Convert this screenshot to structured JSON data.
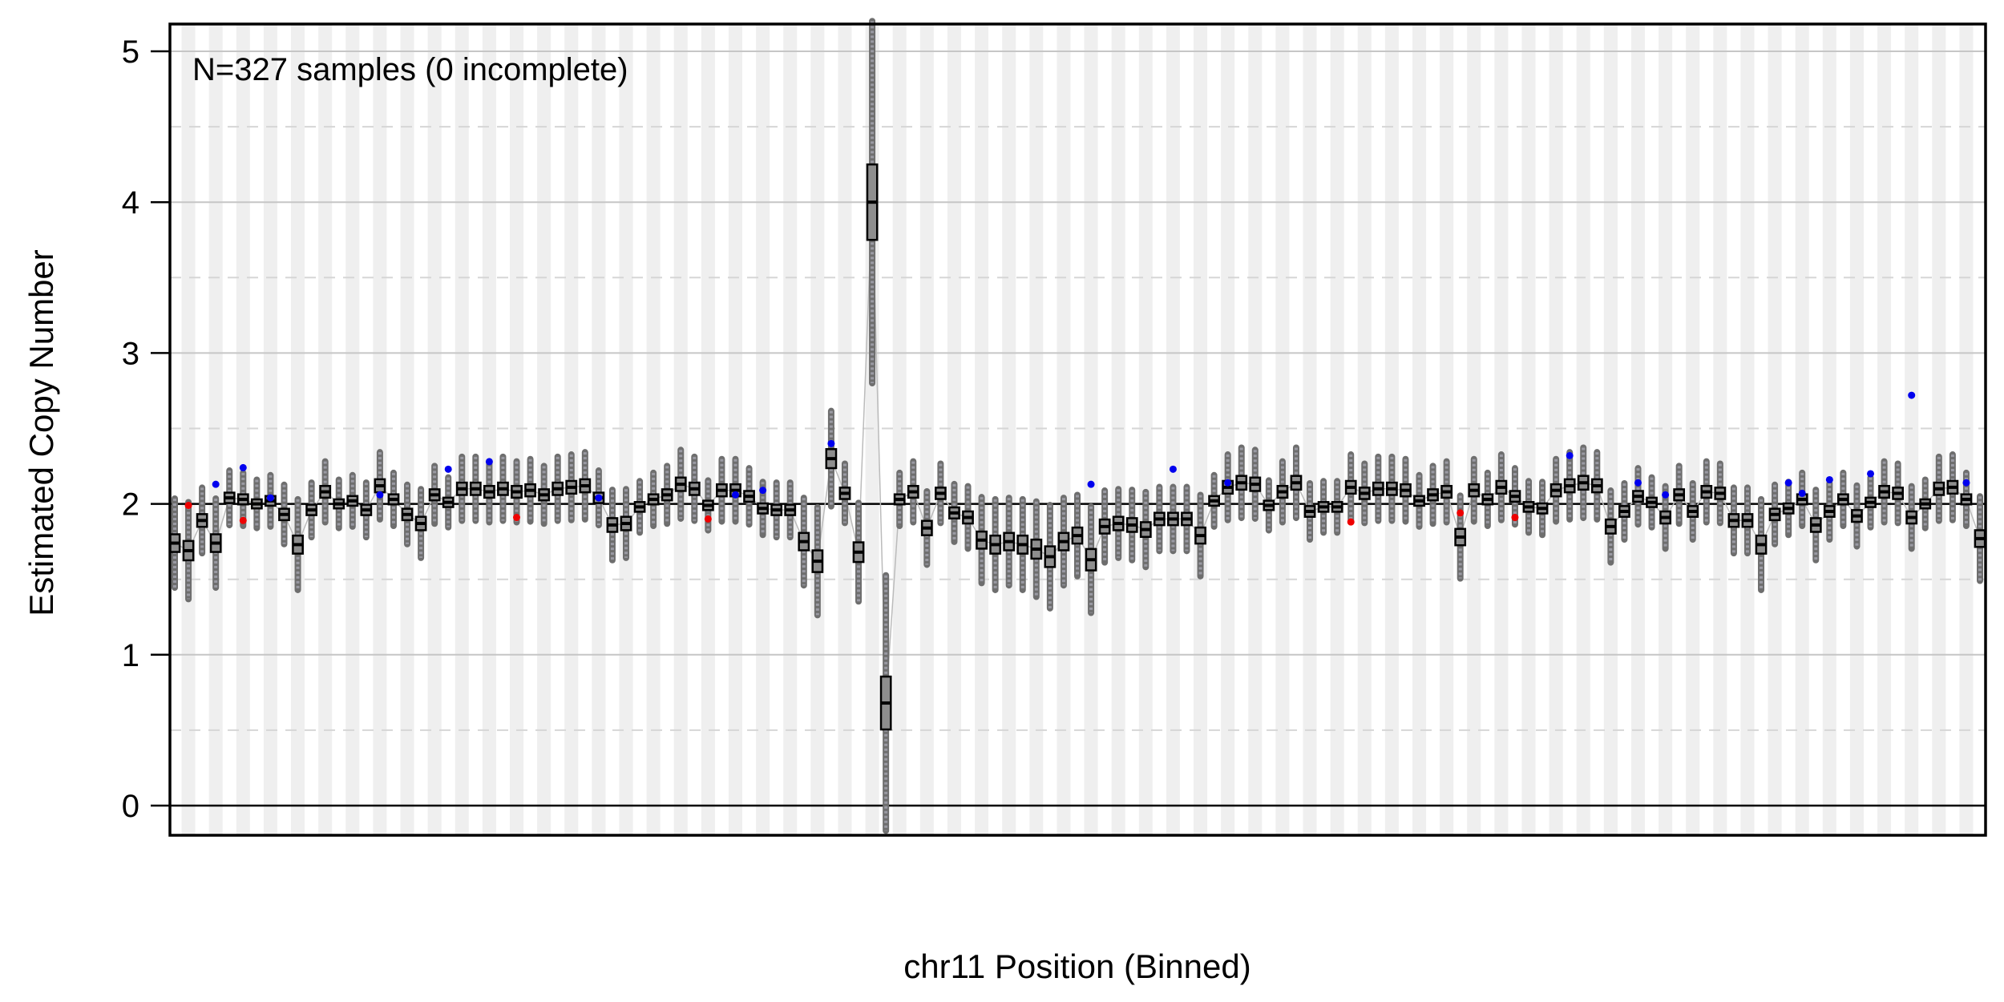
{
  "chart_data": {
    "type": "box",
    "annotation": "N=327 samples (0 incomplete)",
    "xlabel": "chr11 Position (Binned)",
    "ylabel": "Estimated Copy Number",
    "ylim": [
      -0.2,
      5.2
    ],
    "yticks": [
      0,
      1,
      2,
      3,
      4,
      5
    ],
    "yticklabels": [
      "0",
      "1",
      "2",
      "3",
      "4",
      "5"
    ],
    "grid_major": [
      1,
      2,
      3,
      4,
      5
    ],
    "grid_minor": [
      0.5,
      1.5,
      2.5,
      3.5,
      4.5
    ],
    "baseline": 2,
    "box_color": "#777777",
    "median_color": "#000000",
    "high_outlier_color": "#0000ee",
    "low_outlier_color": "#ee0000",
    "medians": [
      1.74,
      1.69,
      1.89,
      1.74,
      2.04,
      2.03,
      2.0,
      2.02,
      1.93,
      1.73,
      1.96,
      2.08,
      2.0,
      2.02,
      1.96,
      2.12,
      2.03,
      1.93,
      1.87,
      2.06,
      2.01,
      2.1,
      2.1,
      2.08,
      2.1,
      2.08,
      2.09,
      2.06,
      2.1,
      2.11,
      2.12,
      2.04,
      1.86,
      1.87,
      1.98,
      2.03,
      2.06,
      2.13,
      2.1,
      1.99,
      2.09,
      2.09,
      2.05,
      1.97,
      1.96,
      1.96,
      1.75,
      1.62,
      2.3,
      2.07,
      1.68,
      4.0,
      0.68,
      2.03,
      2.08,
      1.84,
      2.07,
      1.94,
      1.91,
      1.76,
      1.73,
      1.75,
      1.73,
      1.7,
      1.65,
      1.75,
      1.79,
      1.63,
      1.85,
      1.87,
      1.86,
      1.83,
      1.9,
      1.9,
      1.9,
      1.79,
      2.02,
      2.11,
      2.14,
      2.13,
      1.99,
      2.08,
      2.14,
      1.95,
      1.98,
      1.98,
      2.11,
      2.07,
      2.1,
      2.1,
      2.09,
      2.02,
      2.06,
      2.08,
      1.78,
      2.09,
      2.03,
      2.11,
      2.05,
      1.98,
      1.97,
      2.09,
      2.12,
      2.14,
      2.12,
      1.85,
      1.95,
      2.05,
      2.01,
      1.91,
      2.06,
      1.95,
      2.08,
      2.07,
      1.89,
      1.89,
      1.73,
      1.93,
      1.97,
      2.03,
      1.86,
      1.95,
      2.03,
      1.92,
      2.01,
      2.08,
      2.07,
      1.91,
      2.0,
      2.1,
      2.11,
      2.03,
      1.77
    ],
    "high_outliers": [
      [
        3,
        2.13
      ],
      [
        5,
        2.24
      ],
      [
        7,
        2.04
      ],
      [
        15,
        2.06
      ],
      [
        20,
        2.23
      ],
      [
        23,
        2.28
      ],
      [
        31,
        2.04
      ],
      [
        41,
        2.06
      ],
      [
        43,
        2.09
      ],
      [
        48,
        2.4
      ],
      [
        67,
        2.13
      ],
      [
        73,
        2.23
      ],
      [
        77,
        2.14
      ],
      [
        102,
        2.32
      ],
      [
        107,
        2.14
      ],
      [
        109,
        2.06
      ],
      [
        118,
        2.14
      ],
      [
        119,
        2.07
      ],
      [
        121,
        2.16
      ],
      [
        124,
        2.2
      ],
      [
        127,
        2.72
      ],
      [
        131,
        2.14
      ]
    ],
    "low_outliers": [
      [
        1,
        1.99
      ],
      [
        5,
        1.89
      ],
      [
        25,
        1.91
      ],
      [
        39,
        1.9
      ],
      [
        86,
        1.88
      ],
      [
        94,
        1.94
      ],
      [
        98,
        1.91
      ]
    ]
  }
}
